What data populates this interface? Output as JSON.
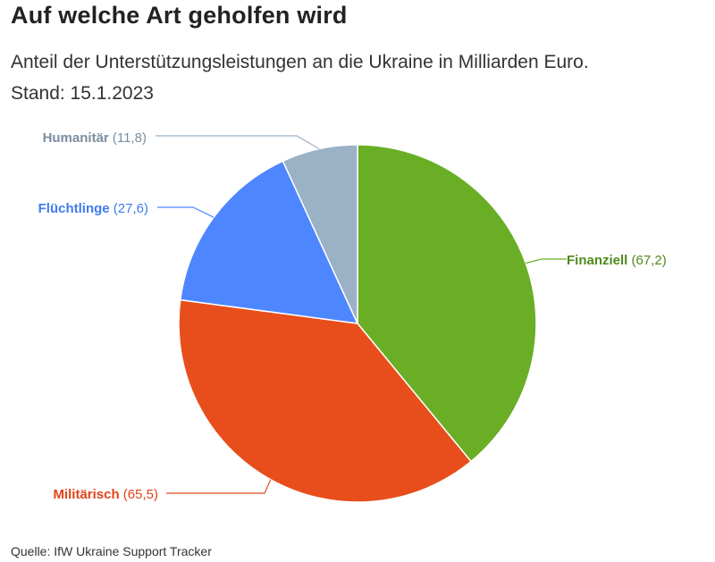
{
  "title": "Auf welche Art geholfen wird",
  "subtitle_line1": "Anteil der Unterstützungsleistungen an die Ukraine in Milliarden Euro.",
  "subtitle_line2": "Stand: 15.1.2023",
  "source": "Quelle: IfW Ukraine Support Tracker",
  "chart_data": {
    "type": "pie",
    "title": "Auf welche Art geholfen wird",
    "unit": "Milliarden Euro",
    "slices": [
      {
        "name": "Finanziell",
        "value": 67.2,
        "value_label": "(67,2)",
        "color": "#6aae26",
        "label_color": "#4e8a1c"
      },
      {
        "name": "Militärisch",
        "value": 65.5,
        "value_label": "(65,5)",
        "color": "#e84e1c",
        "label_color": "#e0441a"
      },
      {
        "name": "Flüchtlinge",
        "value": 27.6,
        "value_label": "(27,6)",
        "color": "#4e86ff",
        "label_color": "#3f7bef"
      },
      {
        "name": "Humanitär",
        "value": 11.8,
        "value_label": "(11,8)",
        "color": "#9ab1c6",
        "label_color": "#7a8ea0"
      }
    ]
  }
}
